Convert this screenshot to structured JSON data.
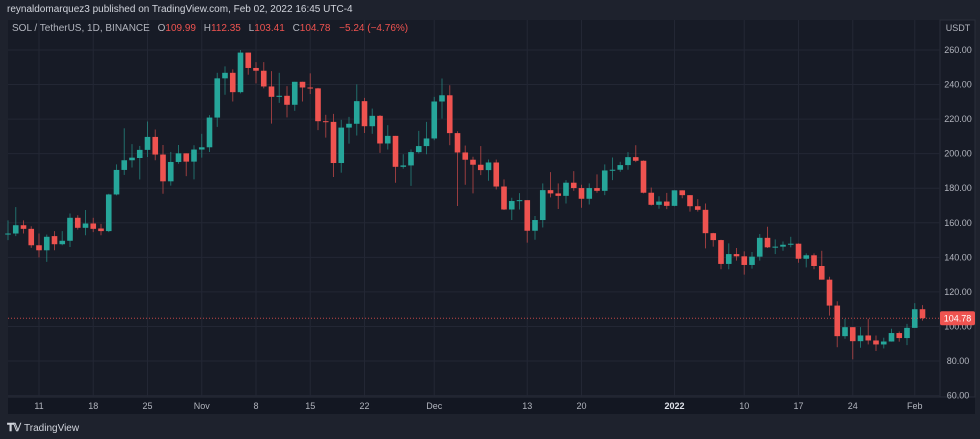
{
  "header": {
    "publisher_line": "reynaldomarquez3 published on TradingView.com, Feb 02, 2022 16:45 UTC-4"
  },
  "legend": {
    "symbol": "SOL / TetherUS, 1D, BINANCE",
    "open_label": "O",
    "open": "109.99",
    "high_label": "H",
    "high": "112.35",
    "low_label": "L",
    "low": "103.41",
    "close_label": "C",
    "close": "104.78",
    "change": "−5.24 (−4.76%)"
  },
  "footer": {
    "brand": "TradingView",
    "logo_icon": "tradingview-logo-icon"
  },
  "colors": {
    "up": "#26a69a",
    "down": "#ef5350",
    "background": "#171b26",
    "grid": "#232734"
  },
  "chart_data": {
    "type": "candlestick",
    "symbol": "SOL / TetherUS",
    "interval": "1D",
    "exchange": "BINANCE",
    "currency_label": "USDT",
    "ylim": [
      60,
      260
    ],
    "y_ticks": [
      "260.00",
      "240.00",
      "220.00",
      "200.00",
      "180.00",
      "160.00",
      "140.00",
      "120.00",
      "100.00",
      "80.00",
      "60.00"
    ],
    "y_tick_values": [
      260,
      240,
      220,
      200,
      180,
      160,
      140,
      120,
      100,
      80,
      60
    ],
    "x_ticks": [
      {
        "date": "2021-10-11",
        "label": "11"
      },
      {
        "date": "2021-10-18",
        "label": "18"
      },
      {
        "date": "2021-10-25",
        "label": "25"
      },
      {
        "date": "2021-11-01",
        "label": "Nov"
      },
      {
        "date": "2021-11-08",
        "label": "8"
      },
      {
        "date": "2021-11-15",
        "label": "15"
      },
      {
        "date": "2021-11-22",
        "label": "22"
      },
      {
        "date": "2021-12-01",
        "label": "Dec"
      },
      {
        "date": "2021-12-13",
        "label": "13"
      },
      {
        "date": "2021-12-20",
        "label": "20"
      },
      {
        "date": "2022-01-01",
        "label": "2022",
        "bold": true
      },
      {
        "date": "2022-01-10",
        "label": "10"
      },
      {
        "date": "2022-01-17",
        "label": "17"
      },
      {
        "date": "2022-01-24",
        "label": "24"
      },
      {
        "date": "2022-02-01",
        "label": "Feb"
      }
    ],
    "last_price": 104.78,
    "last_price_label": "104.78",
    "grid": true,
    "columns": [
      "date",
      "open",
      "high",
      "low",
      "close"
    ],
    "ohlc": [
      [
        "2021-10-07",
        153.2,
        161.4,
        150,
        153.8
      ],
      [
        "2021-10-08",
        153.8,
        169.1,
        152.3,
        158.6
      ],
      [
        "2021-10-09",
        158.6,
        161.4,
        153.8,
        156.5
      ],
      [
        "2021-10-10",
        156.5,
        158,
        145.5,
        147
      ],
      [
        "2021-10-11",
        147,
        153.8,
        140,
        144.1
      ],
      [
        "2021-10-12",
        144.1,
        153.2,
        137.4,
        151.9
      ],
      [
        "2021-10-13",
        152.3,
        155.2,
        144.1,
        147.6
      ],
      [
        "2021-10-14",
        147.6,
        155.2,
        147,
        149.6
      ],
      [
        "2021-10-15",
        149.6,
        165.4,
        146,
        162.9
      ],
      [
        "2021-10-16",
        162.9,
        164.4,
        156.1,
        157.1
      ],
      [
        "2021-10-17",
        157.1,
        167.4,
        152.8,
        159.6
      ],
      [
        "2021-10-18",
        159.6,
        162.9,
        154.6,
        156.5
      ],
      [
        "2021-10-19",
        156.7,
        159.4,
        152.8,
        155.2
      ],
      [
        "2021-10-20",
        155.2,
        176.8,
        154.6,
        176.4
      ],
      [
        "2021-10-21",
        176.4,
        193.8,
        175.9,
        190.6
      ],
      [
        "2021-10-22",
        190.6,
        214.7,
        187.7,
        196.2
      ],
      [
        "2021-10-23",
        196.2,
        205.5,
        192,
        197.7
      ],
      [
        "2021-10-24",
        197.5,
        204.5,
        185.1,
        202.2
      ],
      [
        "2021-10-25",
        202.2,
        218.6,
        198.1,
        209.7
      ],
      [
        "2021-10-26",
        209.7,
        214,
        196.2,
        199.5
      ],
      [
        "2021-10-27",
        199.5,
        205,
        176.8,
        184
      ],
      [
        "2021-10-28",
        184,
        201,
        181.5,
        195.2
      ],
      [
        "2021-10-29",
        195.2,
        205,
        194.2,
        200.2
      ],
      [
        "2021-10-30",
        200.2,
        200.2,
        187,
        195.4
      ],
      [
        "2021-10-31",
        195.4,
        204.9,
        185.1,
        202.4
      ],
      [
        "2021-11-01",
        202.4,
        211.5,
        197.7,
        203.7
      ],
      [
        "2021-11-02",
        203.7,
        222.3,
        201,
        220.9
      ],
      [
        "2021-11-03",
        220.9,
        246.8,
        215.5,
        243.6
      ],
      [
        "2021-11-04",
        243.6,
        250.5,
        234.1,
        246.8
      ],
      [
        "2021-11-05",
        246.8,
        248.8,
        230.2,
        235.6
      ],
      [
        "2021-11-06",
        235.6,
        260,
        234.9,
        258.5
      ],
      [
        "2021-11-07",
        258.5,
        258.5,
        245.7,
        249.6
      ],
      [
        "2021-11-08",
        249.6,
        253,
        240.7,
        248
      ],
      [
        "2021-11-09",
        248,
        253,
        237.8,
        238.9
      ],
      [
        "2021-11-10",
        238.9,
        247.8,
        217.4,
        232.9
      ],
      [
        "2021-11-11",
        232.9,
        246.8,
        229.4,
        233.5
      ],
      [
        "2021-11-12",
        233.5,
        239.1,
        221,
        228.3
      ],
      [
        "2021-11-13",
        228.3,
        241.6,
        224.8,
        241.6
      ],
      [
        "2021-11-14",
        241.6,
        241.6,
        230.2,
        238.3
      ],
      [
        "2021-11-15",
        238.3,
        246.5,
        234.5,
        237.8
      ],
      [
        "2021-11-16",
        237.8,
        238.1,
        213.6,
        218.8
      ],
      [
        "2021-11-17",
        218.8,
        222.5,
        209.3,
        218.4
      ],
      [
        "2021-11-18",
        218.4,
        223,
        186.5,
        194.6
      ],
      [
        "2021-11-19",
        194.6,
        219.6,
        189,
        215.1
      ],
      [
        "2021-11-20",
        215.1,
        221.3,
        205.8,
        217.3
      ],
      [
        "2021-11-21",
        217.3,
        240.1,
        210.5,
        230.4
      ],
      [
        "2021-11-22",
        230.4,
        232.3,
        212,
        215.9
      ],
      [
        "2021-11-23",
        215.9,
        226.1,
        211.5,
        221.9
      ],
      [
        "2021-11-24",
        221.9,
        222.3,
        200.5,
        205.9
      ],
      [
        "2021-11-25",
        205.9,
        216.5,
        202.4,
        210.3
      ],
      [
        "2021-11-26",
        210.3,
        210.3,
        183.2,
        192.4
      ],
      [
        "2021-11-27",
        192.4,
        199.7,
        191.3,
        193.2
      ],
      [
        "2021-11-28",
        193.2,
        202.4,
        181.4,
        200.9
      ],
      [
        "2021-11-29",
        200.9,
        213.2,
        200.1,
        204.4
      ],
      [
        "2021-11-30",
        204.4,
        218.4,
        199.7,
        208.8
      ],
      [
        "2021-12-01",
        208.8,
        232.9,
        207.8,
        230.2
      ],
      [
        "2021-12-02",
        230.2,
        243.5,
        220.3,
        233.8
      ],
      [
        "2021-12-03",
        233.8,
        239.6,
        204.9,
        211.9
      ],
      [
        "2021-12-04",
        211.9,
        213,
        169.7,
        200.7
      ],
      [
        "2021-12-05",
        200.7,
        204.7,
        182,
        196.5
      ],
      [
        "2021-12-06",
        196.5,
        198.2,
        177,
        193.6
      ],
      [
        "2021-12-07",
        193.6,
        204.4,
        187.6,
        190.5
      ],
      [
        "2021-12-08",
        190.5,
        196.6,
        184.3,
        194.9
      ],
      [
        "2021-12-09",
        194.9,
        196.6,
        179.3,
        181
      ],
      [
        "2021-12-10",
        181,
        185.1,
        167.4,
        167.7
      ],
      [
        "2021-12-11",
        167.7,
        174.5,
        161.6,
        172.6
      ],
      [
        "2021-12-12",
        172.6,
        177.2,
        167.7,
        173.1
      ],
      [
        "2021-12-13",
        173.1,
        173.1,
        148.5,
        155.4
      ],
      [
        "2021-12-14",
        155.4,
        163.9,
        150.2,
        161.6
      ],
      [
        "2021-12-15",
        161.6,
        182.8,
        157.3,
        178.9
      ],
      [
        "2021-12-16",
        178.9,
        189.3,
        174.7,
        177
      ],
      [
        "2021-12-17",
        177,
        182.8,
        168,
        175.6
      ],
      [
        "2021-12-18",
        175.6,
        184.7,
        171.2,
        183.2
      ],
      [
        "2021-12-19",
        183.2,
        189.9,
        178.5,
        180.1
      ],
      [
        "2021-12-20",
        180.1,
        182,
        168.7,
        173.9
      ],
      [
        "2021-12-21",
        173.9,
        182.8,
        170.6,
        180.1
      ],
      [
        "2021-12-22",
        180.1,
        188,
        177.4,
        178.5
      ],
      [
        "2021-12-23",
        178.5,
        193.8,
        176,
        190.3
      ],
      [
        "2021-12-24",
        190.3,
        197.8,
        184.7,
        190.7
      ],
      [
        "2021-12-25",
        190.7,
        195.3,
        189.5,
        193.4
      ],
      [
        "2021-12-26",
        193.4,
        200.9,
        190.7,
        198
      ],
      [
        "2021-12-27",
        198,
        204.9,
        195.1,
        195.9
      ],
      [
        "2021-12-28",
        195.9,
        196.1,
        177,
        177.4
      ],
      [
        "2021-12-29",
        177.4,
        180.4,
        170,
        170.4
      ],
      [
        "2021-12-30",
        170.4,
        175.4,
        168.1,
        172.3
      ],
      [
        "2021-12-31",
        172.3,
        177.3,
        167.9,
        169.8
      ],
      [
        "2022-01-01",
        169.8,
        178.8,
        169.6,
        178.8
      ],
      [
        "2022-01-02",
        178.8,
        178.8,
        174.2,
        176
      ],
      [
        "2022-01-03",
        176,
        176,
        166.5,
        169.6
      ],
      [
        "2022-01-04",
        169.6,
        173.7,
        166.5,
        167.5
      ],
      [
        "2022-01-05",
        167.5,
        171.2,
        145.2,
        154
      ],
      [
        "2022-01-06",
        154,
        154.2,
        146.2,
        150
      ],
      [
        "2022-01-07",
        150,
        150.2,
        133.1,
        136.2
      ],
      [
        "2022-01-08",
        136.2,
        148.1,
        133.1,
        141.9
      ],
      [
        "2022-01-09",
        141.9,
        145.4,
        138.1,
        140.6
      ],
      [
        "2022-01-10",
        140.6,
        143.5,
        130,
        135.6
      ],
      [
        "2022-01-11",
        135.6,
        143.1,
        133.5,
        140.4
      ],
      [
        "2022-01-12",
        140.4,
        153.5,
        138.1,
        151.3
      ],
      [
        "2022-01-13",
        151.3,
        157.7,
        145.4,
        145.8
      ],
      [
        "2022-01-14",
        145.8,
        150.4,
        141.9,
        146.2
      ],
      [
        "2022-01-15",
        146.2,
        149.2,
        143.8,
        147.3
      ],
      [
        "2022-01-16",
        147.3,
        151.9,
        145.8,
        147.9
      ],
      [
        "2022-01-17",
        147.9,
        148.1,
        136.9,
        139.2
      ],
      [
        "2022-01-18",
        139.2,
        142.3,
        134.2,
        141.2
      ],
      [
        "2022-01-19",
        141.2,
        142.3,
        133.1,
        135
      ],
      [
        "2022-01-20",
        135,
        143.8,
        127.1,
        127.1
      ],
      [
        "2022-01-21",
        127.1,
        128.8,
        106.3,
        112.1
      ],
      [
        "2022-01-22",
        112.1,
        114.6,
        88,
        94.4
      ],
      [
        "2022-01-23",
        94.4,
        104.4,
        92.9,
        99.6
      ],
      [
        "2022-01-24",
        99.6,
        99.6,
        81,
        91.5
      ],
      [
        "2022-01-25",
        91.5,
        99.6,
        87.7,
        94.8
      ],
      [
        "2022-01-26",
        94.8,
        104.4,
        89.6,
        91.9
      ],
      [
        "2022-01-27",
        91.9,
        94.8,
        85.8,
        89.6
      ],
      [
        "2022-01-28",
        89.6,
        93.5,
        87.3,
        91.3
      ],
      [
        "2022-01-29",
        91.3,
        98.7,
        91.2,
        96.2
      ],
      [
        "2022-01-30",
        96.2,
        97.1,
        91.2,
        93.3
      ],
      [
        "2022-01-31",
        93.3,
        101.5,
        89.2,
        99.2
      ],
      [
        "2022-02-01",
        99.2,
        113.5,
        99.2,
        109.99
      ],
      [
        "2022-02-02",
        109.99,
        112.35,
        103.41,
        104.78
      ]
    ]
  }
}
